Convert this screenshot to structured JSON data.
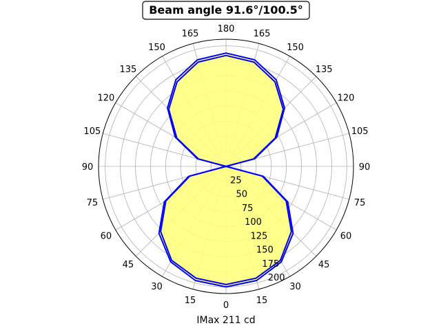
{
  "chart_data": {
    "type": "polar",
    "title": "Beam angle 91.6°/100.5°",
    "xlabel": "IMax 211 cd",
    "angle_tick_labels": [
      "0",
      "15",
      "30",
      "45",
      "60",
      "75",
      "90",
      "105",
      "120",
      "135",
      "150",
      "165",
      "180",
      "165",
      "150",
      "135",
      "120",
      "105",
      "90",
      "75",
      "60",
      "45",
      "30",
      "15"
    ],
    "radial_ticks": [
      25,
      50,
      75,
      100,
      125,
      150,
      175,
      200
    ],
    "rlim": [
      0,
      211
    ],
    "grid": true,
    "fill_color": "#ffff80",
    "line_color": "#0000ff",
    "series": [
      {
        "angles_deg": [
          0,
          15,
          30,
          45,
          60,
          75,
          90,
          105,
          120,
          135,
          150,
          165,
          180
        ],
        "values": [
          196,
          192,
          180,
          153,
          115,
          62,
          0,
          47,
          94,
          134,
          162,
          179,
          184
        ]
      },
      {
        "angles_deg": [
          0,
          15,
          30,
          45,
          60,
          75,
          90,
          105,
          120,
          135,
          150,
          165,
          180
        ],
        "values": [
          200,
          196,
          183,
          157,
          118,
          64,
          0,
          49,
          97,
          137,
          166,
          183,
          188
        ]
      }
    ]
  }
}
